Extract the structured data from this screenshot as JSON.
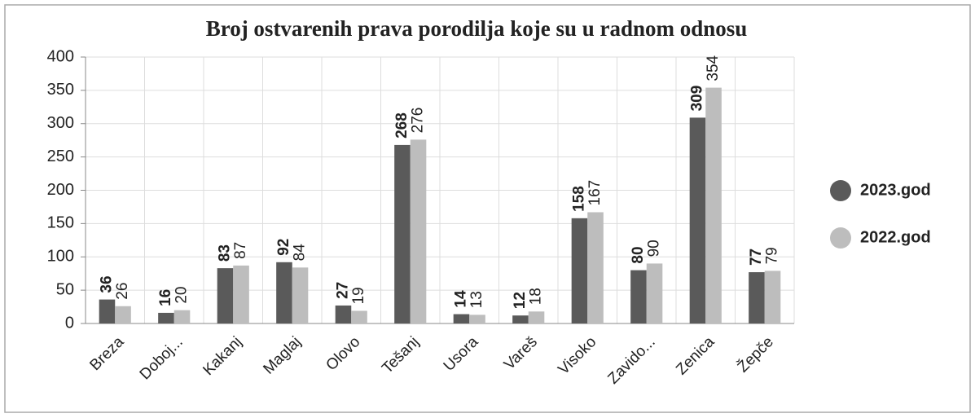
{
  "chart_data": {
    "type": "bar",
    "title": "Broj ostvarenih prava porodilja  koje su u radnom  odnosu",
    "categories": [
      "Breza",
      "Doboj...",
      "Kakanj",
      "Maglaj",
      "Olovo",
      "Tešanj",
      "Usora",
      "Vareš",
      "Visoko",
      "Zavido...",
      "Zenica",
      "Žepče"
    ],
    "series": [
      {
        "name": "2023.god",
        "color": "#5a5a5a",
        "values": [
          36,
          16,
          83,
          92,
          27,
          268,
          14,
          12,
          158,
          80,
          309,
          77
        ]
      },
      {
        "name": "2022.god",
        "color": "#bdbdbd",
        "values": [
          26,
          20,
          87,
          84,
          19,
          276,
          13,
          18,
          167,
          90,
          354,
          79
        ]
      }
    ],
    "ylim": [
      0,
      400
    ],
    "yticks": [
      0,
      50,
      100,
      150,
      200,
      250,
      300,
      350,
      400
    ],
    "grid": true,
    "legend": "right"
  }
}
